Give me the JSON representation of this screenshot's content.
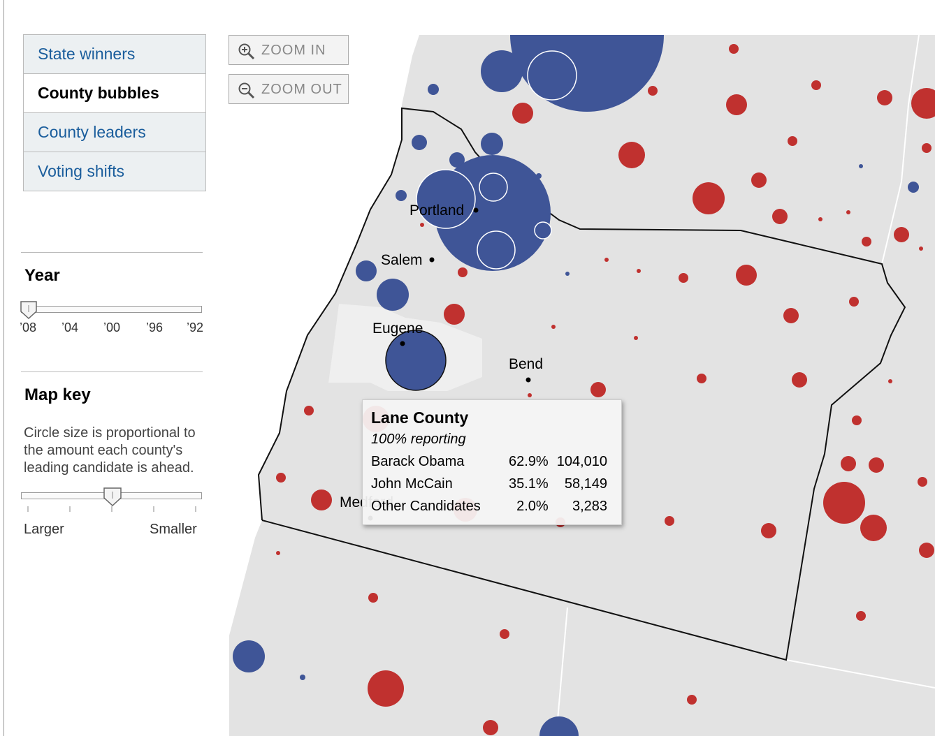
{
  "tabs": [
    "State winners",
    "County bubbles",
    "County leaders",
    "Voting shifts"
  ],
  "zoom": [
    "ZOOM IN",
    "ZOOM OUT"
  ],
  "year": {
    "title": "Year",
    "ticks": [
      "’08",
      "’04",
      "’00",
      "’96",
      "’92"
    ]
  },
  "map_key": {
    "title": "Map key",
    "lines": [
      "Circle size is proportional to",
      "the amount each county's",
      "leading candidate is ahead."
    ],
    "min_label": "Larger",
    "max_label": "Smaller"
  },
  "cities": [
    "Portland",
    "Salem",
    "Eugene",
    "Bend",
    "Medford"
  ],
  "tooltip": {
    "title": "Lane County",
    "subtitle": "100% reporting",
    "rows": [
      [
        "Barack Obama",
        "62.9%",
        "104,010"
      ],
      [
        "John McCain",
        "35.1%",
        "58,149"
      ],
      [
        "Other Candidates",
        "2.0%",
        "3,283"
      ]
    ]
  }
}
